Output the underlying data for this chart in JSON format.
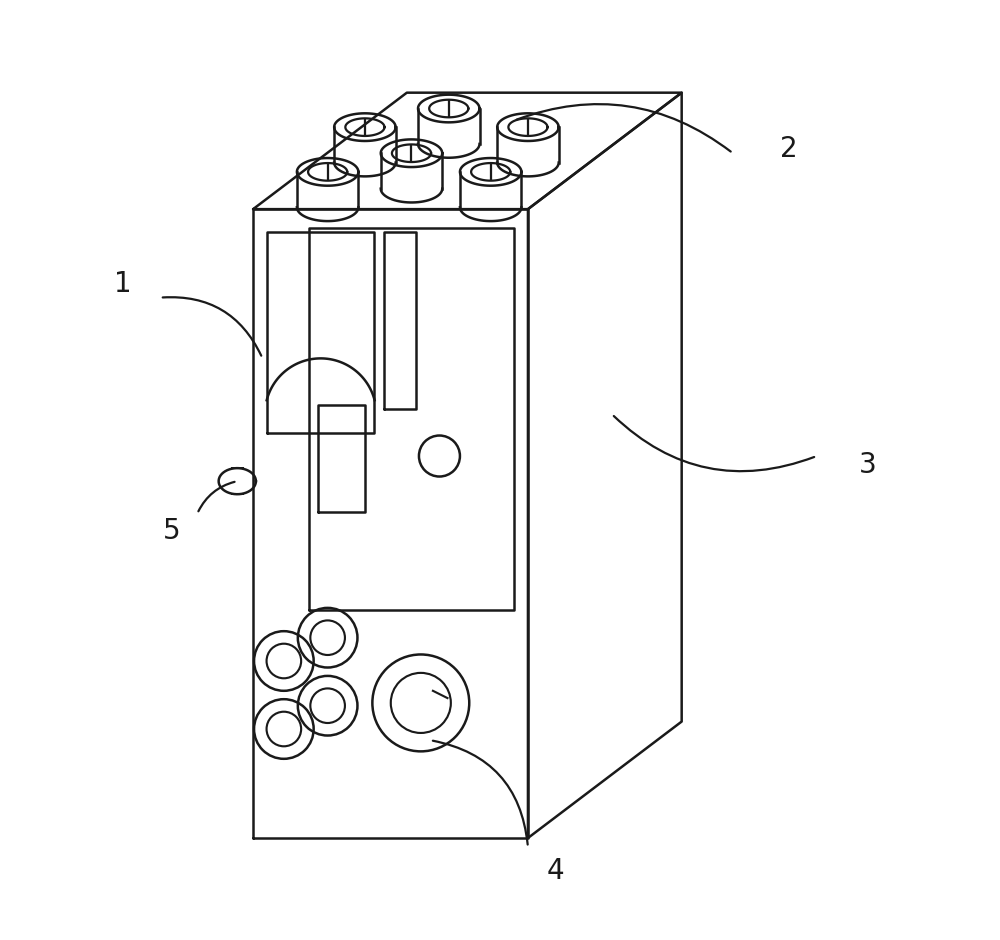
{
  "bg_color": "#ffffff",
  "line_color": "#1a1a1a",
  "line_width": 1.8,
  "fig_width": 10.0,
  "fig_height": 9.4,
  "label_fontsize": 20
}
